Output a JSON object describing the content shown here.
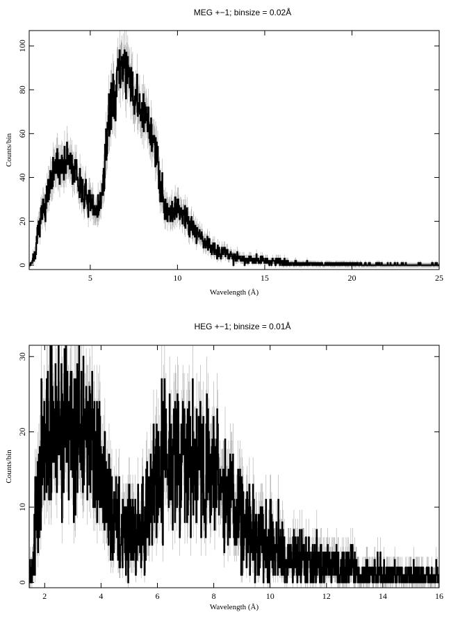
{
  "chart_data": [
    {
      "type": "line",
      "title": "MEG +−1; binsize = 0.02Å",
      "xlabel": "Wavelength (Å)",
      "ylabel": "Counts/bin",
      "xlim": [
        1.5,
        25
      ],
      "ylim": [
        -2,
        107
      ],
      "x_ticks": [
        5,
        10,
        15,
        20,
        25
      ],
      "y_ticks": [
        0,
        20,
        40,
        60,
        80,
        100
      ],
      "grid": false,
      "legend": "none",
      "series": [
        {
          "x": [
            1.5,
            1.7,
            1.9,
            2.0,
            2.2,
            2.5,
            2.8,
            3.0,
            3.3,
            3.6,
            3.8,
            4.0,
            4.2,
            4.5,
            4.8,
            5.0,
            5.3,
            5.6,
            5.8,
            6.0,
            6.2,
            6.4,
            6.6,
            6.8,
            7.0,
            7.2,
            7.5,
            7.8,
            8.0,
            8.3,
            8.6,
            8.9,
            9.2,
            9.5,
            10.0,
            10.5,
            11.0,
            11.5,
            12.0,
            12.5,
            13.0,
            13.5,
            14.0,
            15.0,
            16.0,
            17.0,
            18.0,
            19.0,
            20.0,
            22.0,
            25.0
          ],
          "y": [
            0,
            2,
            7,
            14,
            22,
            30,
            38,
            44,
            46,
            47,
            47,
            44,
            40,
            35,
            30,
            27,
            25,
            28,
            40,
            62,
            74,
            79,
            85,
            92,
            91,
            84,
            77,
            72,
            68,
            66,
            58,
            44,
            30,
            24,
            26,
            22,
            16,
            11,
            8,
            6,
            4.5,
            3.5,
            2.8,
            1.8,
            1.2,
            0.8,
            0.5,
            0.4,
            0.3,
            0.2,
            0.1
          ]
        }
      ]
    },
    {
      "type": "line",
      "title": "HEG +−1; binsize = 0.01Å",
      "xlabel": "Wavelength (Å)",
      "ylabel": "Counts/bin",
      "xlim": [
        1.45,
        16
      ],
      "ylim": [
        -0.7,
        31.5
      ],
      "x_ticks": [
        2,
        4,
        6,
        8,
        10,
        12,
        14,
        16
      ],
      "y_ticks": [
        0,
        10,
        20,
        30
      ],
      "grid": false,
      "legend": "none",
      "series": [
        {
          "x": [
            1.45,
            1.55,
            1.7,
            1.9,
            2.1,
            2.4,
            2.7,
            3.0,
            3.3,
            3.6,
            3.9,
            4.1,
            4.3,
            4.5,
            4.7,
            4.9,
            5.1,
            5.3,
            5.5,
            5.7,
            5.9,
            6.1,
            6.3,
            6.5,
            6.7,
            6.9,
            7.1,
            7.3,
            7.6,
            8.0,
            8.4,
            8.8,
            9.2,
            9.6,
            10.0,
            10.5,
            11.0,
            11.5,
            12.0,
            12.5,
            13.0,
            14.0,
            15.0,
            16.0
          ],
          "y": [
            0,
            3,
            9,
            15,
            19,
            21,
            22,
            21,
            20,
            18.5,
            16,
            13,
            10,
            8,
            7,
            7,
            7,
            7.5,
            8,
            10,
            13,
            15.5,
            17.5,
            18.5,
            18,
            17,
            16,
            15.5,
            15,
            14,
            12,
            10,
            8,
            6,
            5,
            4,
            3.2,
            2.6,
            2.1,
            1.7,
            1.4,
            1.0,
            0.8,
            0.6
          ]
        }
      ]
    }
  ]
}
